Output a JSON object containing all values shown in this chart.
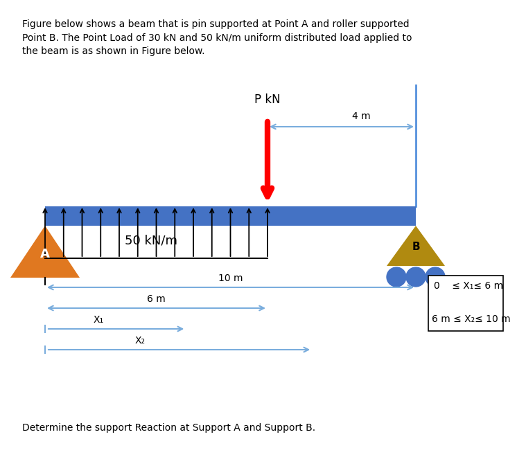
{
  "title_text": "Figure below shows a beam that is pin supported at Point A and roller supported\nPoint B. The Point Load of 30 kN and 50 kN/m uniform distributed load applied to\nthe beam is as shown in Figure below.",
  "bottom_text": "Determine the support Reaction at Support A and Support B.",
  "beam_color": "#4472c4",
  "wall_line_color": "#5590dd",
  "udl_label": "50 kN/m",
  "point_load_label": "P kN",
  "dim_4m": "4 m",
  "dim_10m": "10 m",
  "dim_6m": "6 m",
  "x1_label": "X₁",
  "x2_label": "X₂",
  "support_a_label": "A",
  "support_b_label": "B",
  "triangle_color_a": "#e07820",
  "triangle_color_b": "#b08a10",
  "roller_circle_color": "#4472c4",
  "background_color": "#ffffff",
  "box_text_line1": "0    ≤ X₁≤ 6 m",
  "box_text_line2": "6 m ≤ X₂≤ 10 m",
  "arrow_color": "#7aaddd",
  "udl_color": "black",
  "point_load_color": "red"
}
